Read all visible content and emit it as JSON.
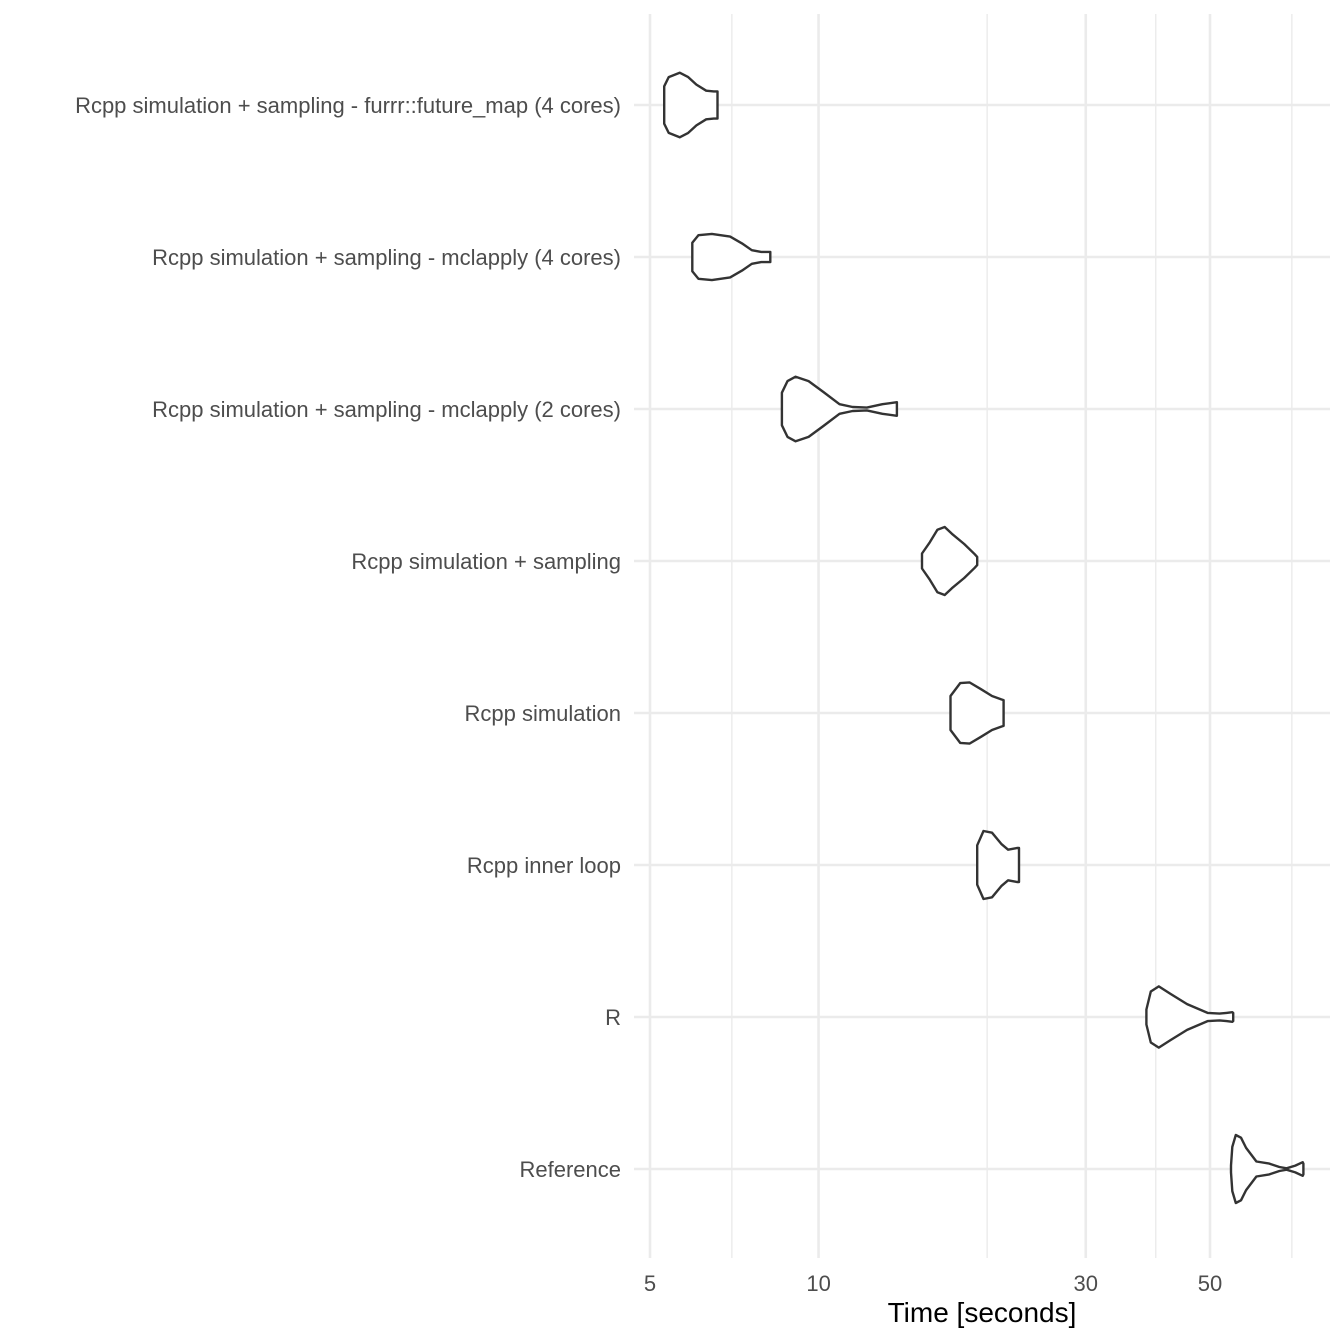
{
  "chart_data": {
    "type": "violin",
    "xlabel": "Time [seconds]",
    "ylabel": "",
    "x_scale": "log10",
    "xlim": [
      5,
      80
    ],
    "x_ticks": [
      5,
      10,
      30,
      50
    ],
    "grid": true,
    "colors": {
      "outline": "#333333",
      "fill": "#ffffff",
      "grid": "#ebebeb",
      "text": "#4d4d4d"
    },
    "categories": [
      "Rcpp simulation + sampling - furrr::future_map (4 cores)",
      "Rcpp simulation + sampling - mclapply (4 cores)",
      "Rcpp simulation + sampling - mclapply (2 cores)",
      "Rcpp simulation + sampling",
      "Rcpp simulation",
      "Rcpp inner loop",
      "R",
      "Reference"
    ],
    "series": [
      {
        "category": "Rcpp simulation + sampling - furrr::future_map (4 cores)",
        "profile": [
          [
            5.3,
            0.55
          ],
          [
            5.4,
            0.82
          ],
          [
            5.65,
            0.95
          ],
          [
            5.85,
            0.82
          ],
          [
            6.05,
            0.6
          ],
          [
            6.3,
            0.42
          ],
          [
            6.5,
            0.4
          ],
          [
            6.6,
            0.4
          ]
        ]
      },
      {
        "category": "Rcpp simulation + sampling - mclapply (4 cores)",
        "profile": [
          [
            5.95,
            0.42
          ],
          [
            6.1,
            0.64
          ],
          [
            6.45,
            0.68
          ],
          [
            6.95,
            0.6
          ],
          [
            7.3,
            0.4
          ],
          [
            7.6,
            0.2
          ],
          [
            7.9,
            0.15
          ],
          [
            8.2,
            0.15
          ]
        ]
      },
      {
        "category": "Rcpp simulation + sampling - mclapply (2 cores)",
        "profile": [
          [
            8.6,
            0.48
          ],
          [
            8.8,
            0.82
          ],
          [
            9.1,
            0.95
          ],
          [
            9.6,
            0.82
          ],
          [
            10.2,
            0.5
          ],
          [
            10.9,
            0.14
          ],
          [
            11.5,
            0.06
          ],
          [
            12.2,
            0.04
          ],
          [
            13.0,
            0.14
          ],
          [
            13.8,
            0.2
          ]
        ]
      },
      {
        "category": "Rcpp simulation + sampling",
        "profile": [
          [
            15.3,
            0.22
          ],
          [
            15.8,
            0.55
          ],
          [
            16.3,
            0.92
          ],
          [
            16.8,
            1.0
          ],
          [
            17.3,
            0.8
          ],
          [
            18.2,
            0.5
          ],
          [
            19.0,
            0.2
          ],
          [
            19.2,
            0.12
          ]
        ]
      },
      {
        "category": "Rcpp simulation",
        "profile": [
          [
            17.2,
            0.5
          ],
          [
            17.9,
            0.88
          ],
          [
            18.6,
            0.9
          ],
          [
            19.5,
            0.7
          ],
          [
            20.4,
            0.5
          ],
          [
            21.2,
            0.4
          ],
          [
            21.4,
            0.38
          ]
        ]
      },
      {
        "category": "Rcpp inner loop",
        "profile": [
          [
            19.2,
            0.58
          ],
          [
            19.7,
            1.0
          ],
          [
            20.4,
            0.95
          ],
          [
            21.2,
            0.62
          ],
          [
            21.8,
            0.45
          ],
          [
            22.6,
            0.5
          ],
          [
            22.8,
            0.5
          ]
        ]
      },
      {
        "category": "R",
        "profile": [
          [
            38.5,
            0.22
          ],
          [
            39.2,
            0.75
          ],
          [
            40.5,
            0.9
          ],
          [
            42.5,
            0.68
          ],
          [
            45.5,
            0.38
          ],
          [
            49.5,
            0.12
          ],
          [
            52.0,
            0.1
          ],
          [
            53.5,
            0.12
          ],
          [
            54.8,
            0.14
          ],
          [
            55.0,
            0.12
          ]
        ]
      },
      {
        "category": "Reference",
        "profile": [
          [
            54.5,
            0.1
          ],
          [
            54.8,
            0.65
          ],
          [
            55.6,
            1.0
          ],
          [
            56.8,
            0.92
          ],
          [
            58.0,
            0.62
          ],
          [
            60.5,
            0.22
          ],
          [
            63.8,
            0.16
          ],
          [
            66.5,
            0.06
          ],
          [
            68.5,
            0.02
          ],
          [
            71.0,
            0.1
          ],
          [
            73.2,
            0.2
          ],
          [
            73.4,
            0.16
          ]
        ]
      }
    ]
  }
}
